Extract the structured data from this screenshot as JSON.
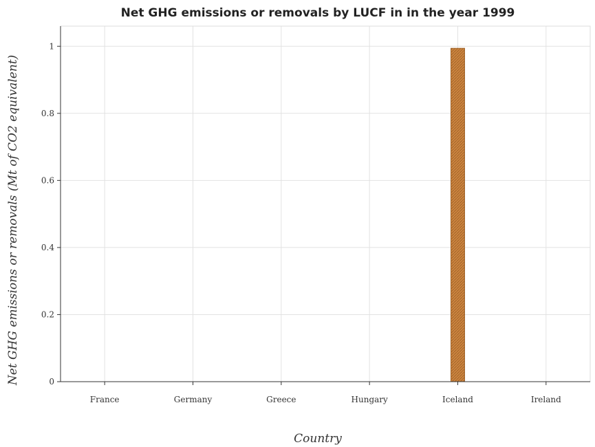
{
  "colors": {
    "bar_fill": "#cd853f",
    "bar_hatch": "#a0642a"
  },
  "chart_data": {
    "type": "bar",
    "title": "Net GHG emissions or removals by LUCF in in the year 1999",
    "xlabel": "Country",
    "ylabel": "Net GHG emissions or removals (Mt of CO2 equivalent)",
    "categories": [
      "France",
      "Germany",
      "Greece",
      "Hungary",
      "Iceland",
      "Ireland"
    ],
    "values": [
      0,
      0,
      0,
      0,
      0.994,
      0
    ],
    "ylim": [
      0,
      1.06
    ],
    "yticks": [
      0,
      0.2,
      0.4,
      0.6,
      0.8,
      1
    ],
    "ytick_labels": [
      "0",
      "0.2",
      "0.4",
      "0.6",
      "0.8",
      "1"
    ],
    "grid": true
  }
}
